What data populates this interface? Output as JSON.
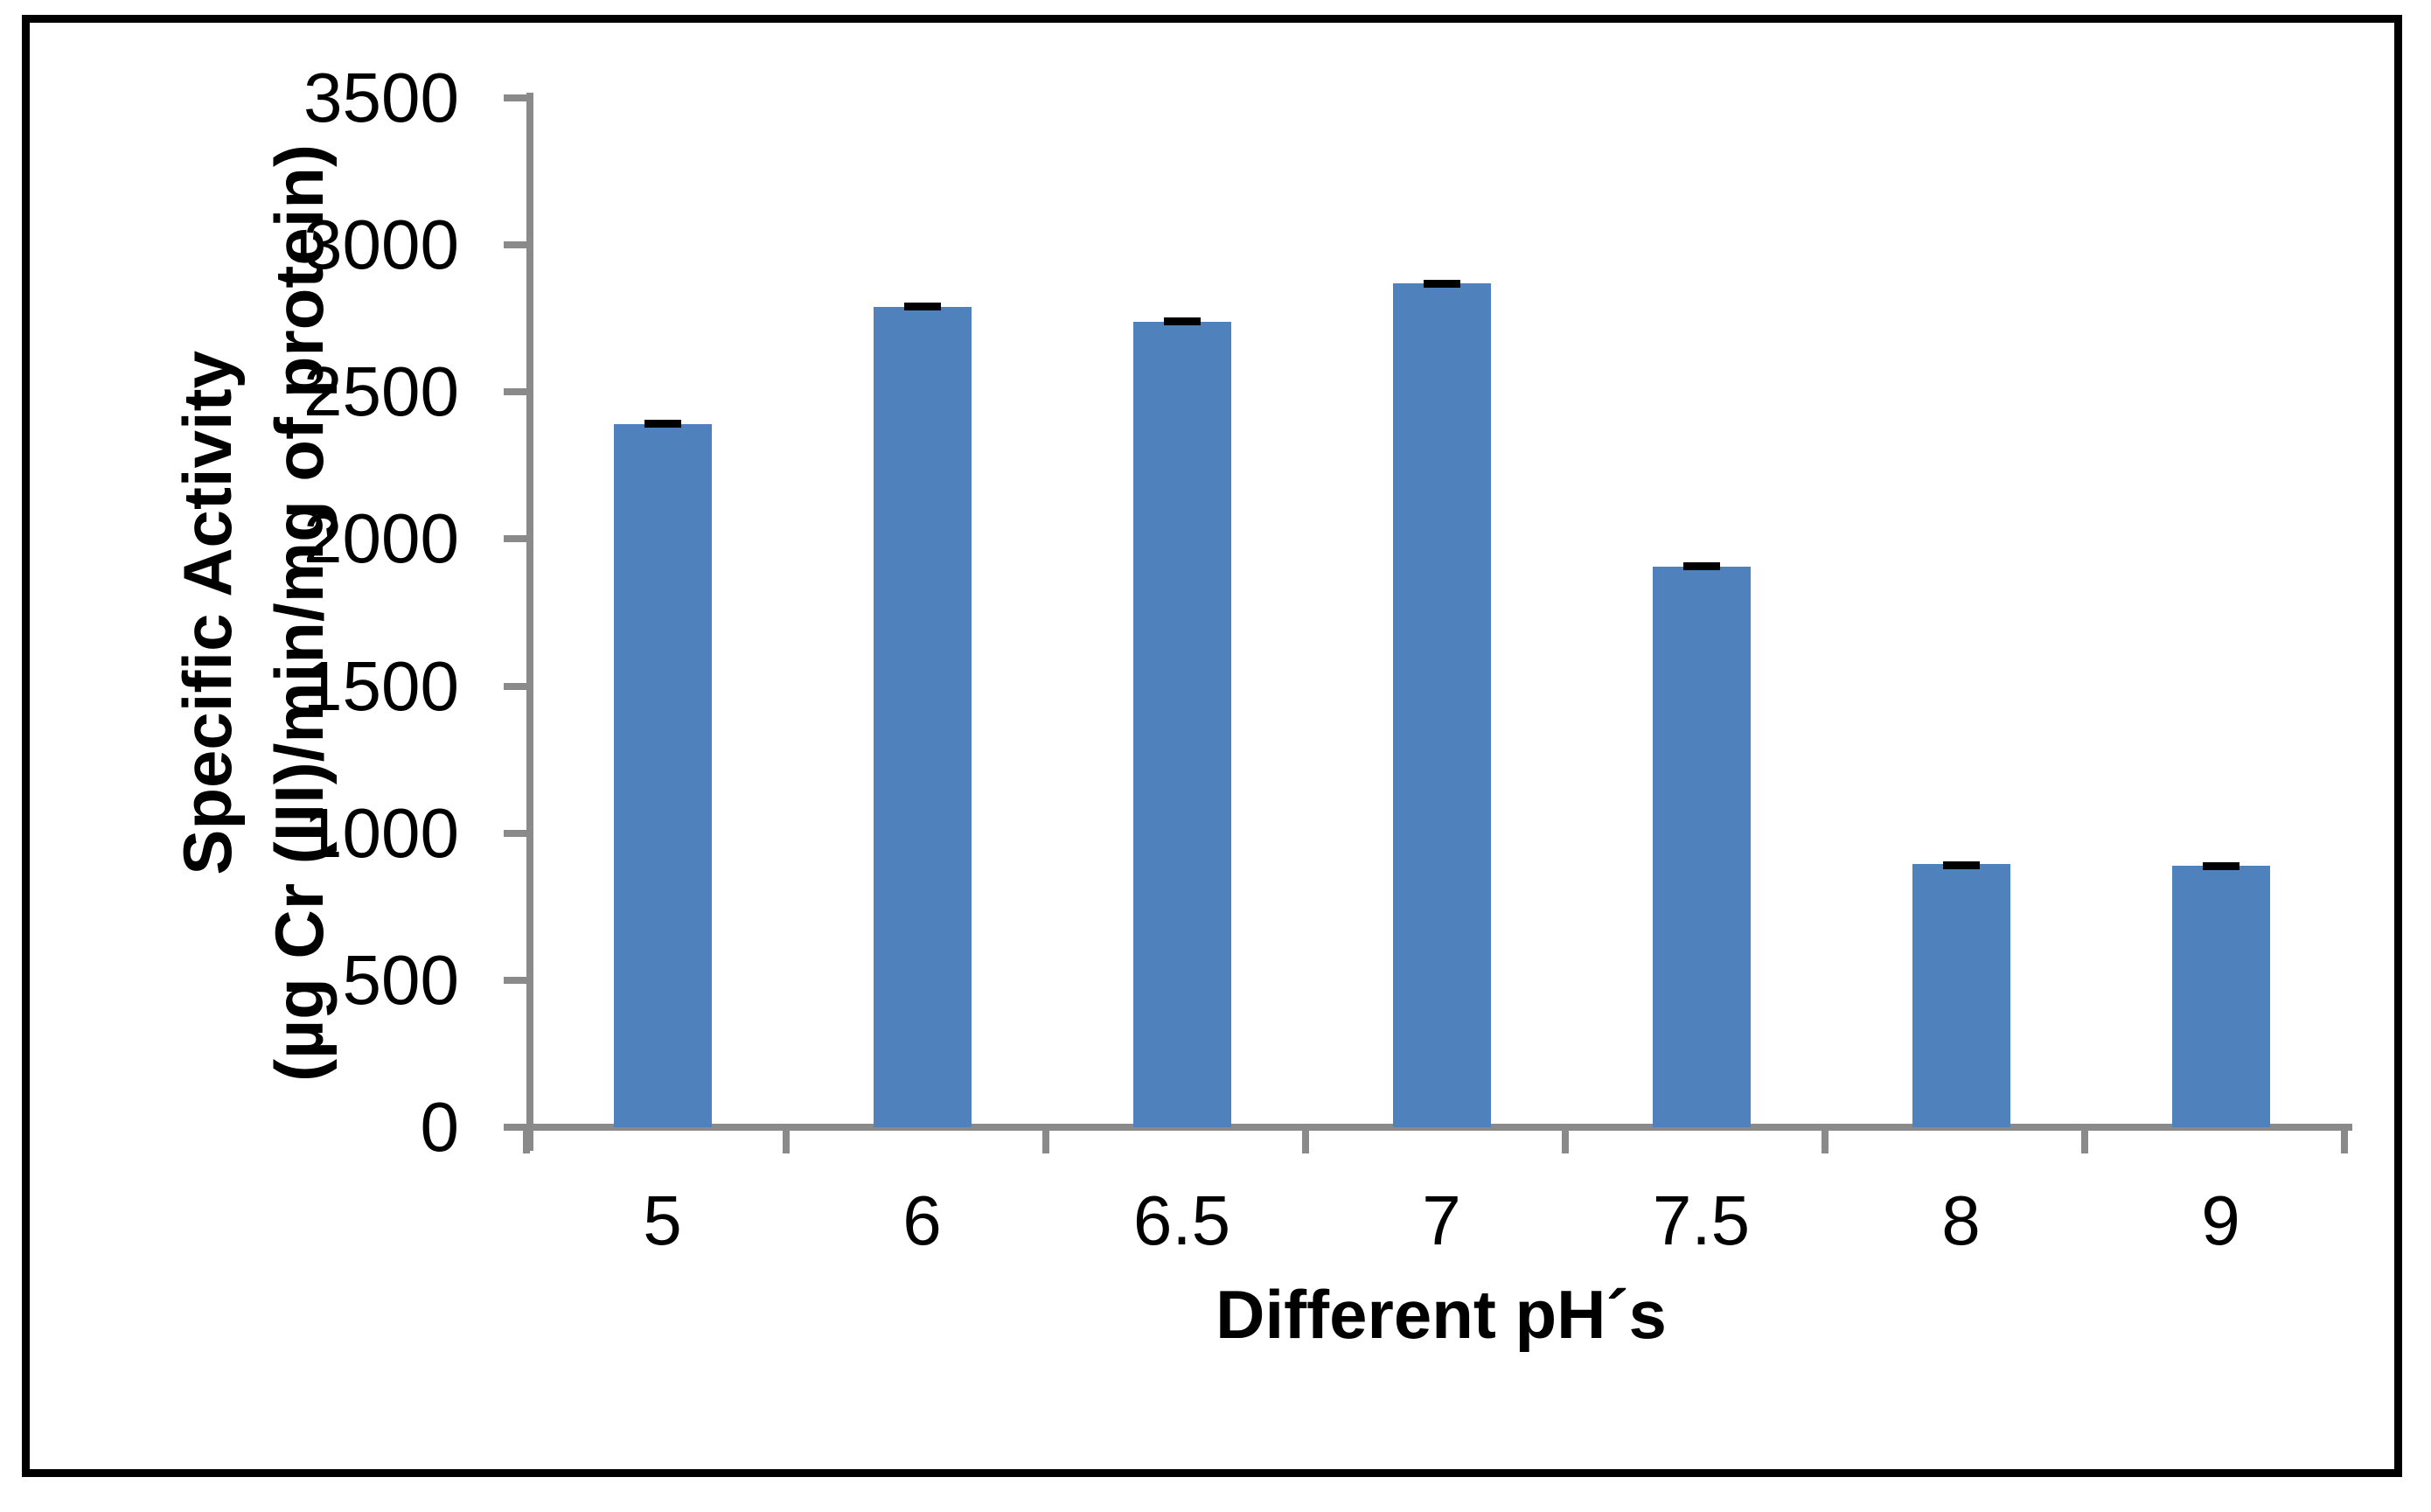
{
  "figure": {
    "background": "#ffffff",
    "border_color": "#000000"
  },
  "chart_data": {
    "type": "bar",
    "title": "",
    "categories": [
      "5",
      "6",
      "6.5",
      "7",
      "7.5",
      "8",
      "9"
    ],
    "values": [
      2390,
      2790,
      2740,
      2870,
      1905,
      895,
      890
    ],
    "errors": [
      15,
      15,
      15,
      10,
      15,
      10,
      10
    ],
    "xlabel": "Different pH´s",
    "ylabel_line1": "Specific Activity",
    "ylabel_line2": "(µg Cr (III)/min/mg of protein)",
    "ylim": [
      0,
      3500
    ],
    "ytick_step": 500,
    "ytick_labels": [
      "3500",
      "3000",
      "2500",
      "2000",
      "1500",
      "1000",
      "500",
      "0"
    ],
    "grid": false,
    "legend": null,
    "bar_color": "#4F81BD",
    "axis_color": "#8A8A8A",
    "error_bar_color": "#000000",
    "text_color": "#000000"
  }
}
